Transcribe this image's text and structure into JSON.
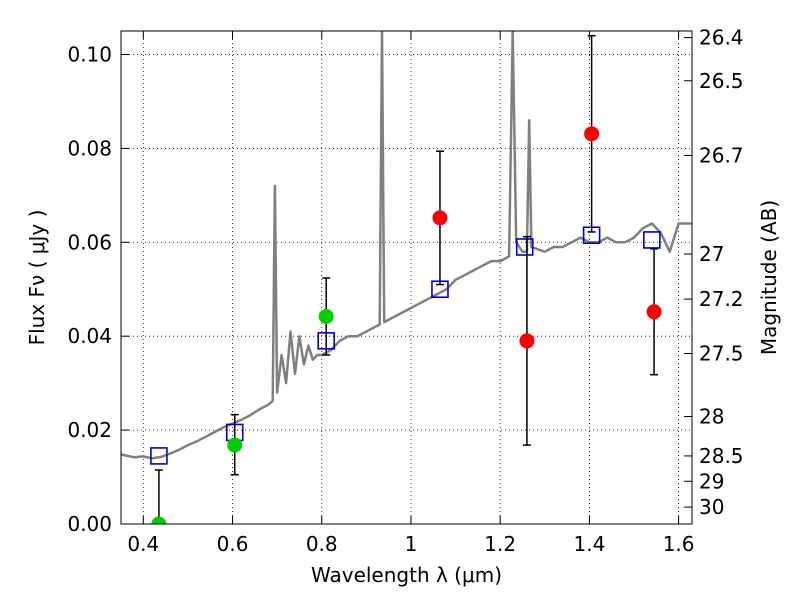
{
  "chart_data": {
    "type": "scatter",
    "xlabel": "Wavelength  λ (μm)",
    "ylabel": "Flux  Fν  ( μJy )",
    "ylabel_right": "Magnitude (AB)",
    "xlim": [
      0.35,
      1.63
    ],
    "ylim": [
      0.0,
      0.105
    ],
    "grid": true,
    "x_ticks": [
      {
        "value": 0.4,
        "label": "0.4"
      },
      {
        "value": 0.6,
        "label": "0.6"
      },
      {
        "value": 0.8,
        "label": "0.8"
      },
      {
        "value": 1.0,
        "label": "1"
      },
      {
        "value": 1.2,
        "label": "1.2"
      },
      {
        "value": 1.4,
        "label": "1.4"
      },
      {
        "value": 1.6,
        "label": "1.6"
      }
    ],
    "y_ticks": [
      {
        "value": 0.0,
        "label": "0.00"
      },
      {
        "value": 0.02,
        "label": "0.02"
      },
      {
        "value": 0.04,
        "label": "0.04"
      },
      {
        "value": 0.06,
        "label": "0.06"
      },
      {
        "value": 0.08,
        "label": "0.08"
      },
      {
        "value": 0.1,
        "label": "0.10"
      }
    ],
    "right_ticks": [
      {
        "flux": 0.1036,
        "label": "26.4"
      },
      {
        "flux": 0.0944,
        "label": "26.5"
      },
      {
        "flux": 0.0785,
        "label": "26.7"
      },
      {
        "flux": 0.0575,
        "label": "27"
      },
      {
        "flux": 0.0479,
        "label": "27.2"
      },
      {
        "flux": 0.0363,
        "label": "27.5"
      },
      {
        "flux": 0.0229,
        "label": "28"
      },
      {
        "flux": 0.0145,
        "label": "28.5"
      },
      {
        "flux": 0.0091,
        "label": "29"
      },
      {
        "flux": 0.0036,
        "label": "30"
      }
    ],
    "model_spectrum": {
      "color": "#808080",
      "points": [
        [
          0.35,
          0.0148
        ],
        [
          0.38,
          0.0142
        ],
        [
          0.4,
          0.0144
        ],
        [
          0.42,
          0.014
        ],
        [
          0.44,
          0.0143
        ],
        [
          0.46,
          0.015
        ],
        [
          0.48,
          0.0158
        ],
        [
          0.5,
          0.0168
        ],
        [
          0.52,
          0.0176
        ],
        [
          0.54,
          0.0186
        ],
        [
          0.56,
          0.0196
        ],
        [
          0.58,
          0.0206
        ],
        [
          0.6,
          0.0214
        ],
        [
          0.62,
          0.0222
        ],
        [
          0.64,
          0.0232
        ],
        [
          0.66,
          0.0244
        ],
        [
          0.68,
          0.0254
        ],
        [
          0.69,
          0.0262
        ],
        [
          0.695,
          0.072
        ],
        [
          0.7,
          0.028
        ],
        [
          0.71,
          0.036
        ],
        [
          0.72,
          0.03
        ],
        [
          0.73,
          0.041
        ],
        [
          0.74,
          0.032
        ],
        [
          0.75,
          0.04
        ],
        [
          0.76,
          0.034
        ],
        [
          0.77,
          0.038
        ],
        [
          0.78,
          0.035
        ],
        [
          0.79,
          0.036
        ],
        [
          0.8,
          0.036
        ],
        [
          0.82,
          0.037
        ],
        [
          0.84,
          0.039
        ],
        [
          0.86,
          0.04
        ],
        [
          0.88,
          0.04
        ],
        [
          0.9,
          0.041
        ],
        [
          0.92,
          0.042
        ],
        [
          0.93,
          0.0425
        ],
        [
          0.935,
          0.105
        ],
        [
          0.94,
          0.043
        ],
        [
          0.96,
          0.044
        ],
        [
          0.98,
          0.045
        ],
        [
          1.0,
          0.046
        ],
        [
          1.02,
          0.047
        ],
        [
          1.04,
          0.048
        ],
        [
          1.06,
          0.049
        ],
        [
          1.08,
          0.05
        ],
        [
          1.1,
          0.052
        ],
        [
          1.12,
          0.053
        ],
        [
          1.14,
          0.054
        ],
        [
          1.16,
          0.055
        ],
        [
          1.18,
          0.056
        ],
        [
          1.2,
          0.056
        ],
        [
          1.22,
          0.057
        ],
        [
          1.228,
          0.105
        ],
        [
          1.236,
          0.06
        ],
        [
          1.25,
          0.058
        ],
        [
          1.26,
          0.058
        ],
        [
          1.265,
          0.086
        ],
        [
          1.27,
          0.059
        ],
        [
          1.3,
          0.058
        ],
        [
          1.32,
          0.059
        ],
        [
          1.34,
          0.059
        ],
        [
          1.36,
          0.06
        ],
        [
          1.38,
          0.061
        ],
        [
          1.4,
          0.06
        ],
        [
          1.42,
          0.06
        ],
        [
          1.44,
          0.061
        ],
        [
          1.46,
          0.06
        ],
        [
          1.48,
          0.06
        ],
        [
          1.5,
          0.061
        ],
        [
          1.52,
          0.063
        ],
        [
          1.54,
          0.064
        ],
        [
          1.56,
          0.062
        ],
        [
          1.58,
          0.058
        ],
        [
          1.6,
          0.064
        ],
        [
          1.62,
          0.064
        ],
        [
          1.63,
          0.064
        ]
      ]
    },
    "model_photometry": {
      "color": "#0000cc",
      "points": [
        [
          0.435,
          0.0145
        ],
        [
          0.605,
          0.0195
        ],
        [
          0.81,
          0.039
        ],
        [
          1.065,
          0.05
        ],
        [
          1.255,
          0.059
        ],
        [
          1.405,
          0.0615
        ],
        [
          1.54,
          0.0605
        ]
      ]
    },
    "detections": {
      "color": "#00cc00",
      "points": [
        {
          "x": 0.435,
          "y": 0.0,
          "err_low": 0.0,
          "err_high": 0.0115
        },
        {
          "x": 0.605,
          "y": 0.0168,
          "err_low": 0.0063,
          "err_high": 0.0065
        },
        {
          "x": 0.81,
          "y": 0.0442,
          "err_low": 0.0082,
          "err_high": 0.0082
        }
      ]
    },
    "measurements": {
      "color": "#ff0000",
      "points": [
        {
          "x": 1.065,
          "y": 0.0652,
          "err_low": 0.0142,
          "err_high": 0.0142
        },
        {
          "x": 1.26,
          "y": 0.039,
          "err_low": 0.0222,
          "err_high": 0.0222
        },
        {
          "x": 1.405,
          "y": 0.0831,
          "err_low": 0.0209,
          "err_high": 0.0209
        },
        {
          "x": 1.545,
          "y": 0.0452,
          "err_low": 0.0134,
          "err_high": 0.0134
        }
      ]
    }
  }
}
